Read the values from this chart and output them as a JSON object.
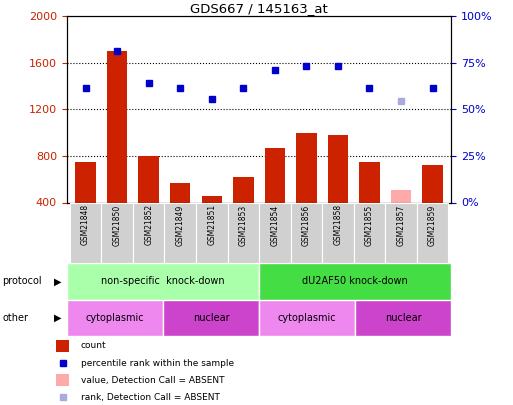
{
  "title": "GDS667 / 145163_at",
  "samples": [
    "GSM21848",
    "GSM21850",
    "GSM21852",
    "GSM21849",
    "GSM21851",
    "GSM21853",
    "GSM21854",
    "GSM21856",
    "GSM21858",
    "GSM21855",
    "GSM21857",
    "GSM21859"
  ],
  "bar_values": [
    750,
    1700,
    800,
    570,
    460,
    620,
    870,
    1000,
    980,
    750,
    510,
    720
  ],
  "bar_colors": [
    "#cc2200",
    "#cc2200",
    "#cc2200",
    "#cc2200",
    "#cc2200",
    "#cc2200",
    "#cc2200",
    "#cc2200",
    "#cc2200",
    "#cc2200",
    "#ffaaaa",
    "#cc2200"
  ],
  "dot_values": [
    1380,
    1700,
    1430,
    1380,
    1290,
    1380,
    1540,
    1570,
    1570,
    1380,
    1270,
    1380
  ],
  "dot_colors": [
    "#0000cc",
    "#0000cc",
    "#0000cc",
    "#0000cc",
    "#0000cc",
    "#0000cc",
    "#0000cc",
    "#0000cc",
    "#0000cc",
    "#0000cc",
    "#aaaadd",
    "#0000cc"
  ],
  "ylim_left": [
    400,
    2000
  ],
  "ylim_right": [
    0,
    100
  ],
  "yticks_left": [
    400,
    800,
    1200,
    1600,
    2000
  ],
  "yticks_right": [
    0,
    25,
    50,
    75,
    100
  ],
  "ytick_labels_right": [
    "0%",
    "25%",
    "50%",
    "75%",
    "100%"
  ],
  "protocol_groups": [
    {
      "label": "non-specific  knock-down",
      "start": 0,
      "end": 6,
      "color": "#aaffaa"
    },
    {
      "label": "dU2AF50 knock-down",
      "start": 6,
      "end": 12,
      "color": "#44dd44"
    }
  ],
  "other_groups": [
    {
      "label": "cytoplasmic",
      "start": 0,
      "end": 3,
      "color": "#ee88ee"
    },
    {
      "label": "nuclear",
      "start": 3,
      "end": 6,
      "color": "#cc44cc"
    },
    {
      "label": "cytoplasmic",
      "start": 6,
      "end": 9,
      "color": "#ee88ee"
    },
    {
      "label": "nuclear",
      "start": 9,
      "end": 12,
      "color": "#cc44cc"
    }
  ],
  "legend_items": [
    {
      "label": "count",
      "color": "#cc2200",
      "style": "bar"
    },
    {
      "label": "percentile rank within the sample",
      "color": "#0000cc",
      "style": "dot"
    },
    {
      "label": "value, Detection Call = ABSENT",
      "color": "#ffaaaa",
      "style": "bar"
    },
    {
      "label": "rank, Detection Call = ABSENT",
      "color": "#aaaadd",
      "style": "dot"
    }
  ],
  "bg_color": "#ffffff",
  "left_tick_color": "#cc2200",
  "right_tick_color": "#0000cc"
}
